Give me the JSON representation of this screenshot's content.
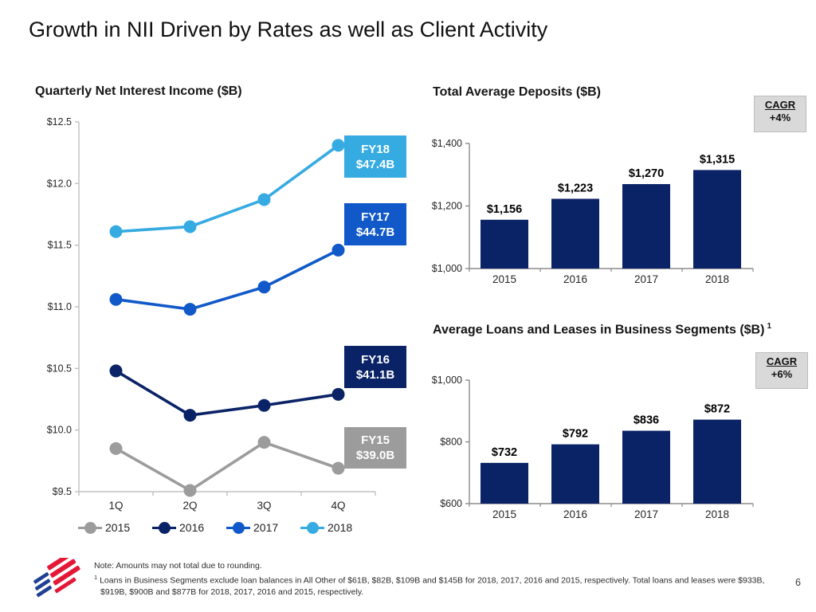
{
  "slide": {
    "title": "Growth in NII Driven by Rates as well as Client Activity",
    "page_number": "6"
  },
  "colors": {
    "navy": "#0a2266",
    "blue": "#1159c9",
    "light_blue": "#36abe2",
    "gray": "#9c9c9c",
    "cagr_bg": "#d9d9d9",
    "axis_light": "#c0c0c0",
    "axis_dark": "#8c8c8c",
    "text_dark": "#1a1a1a",
    "logo_blue": "#1f4093",
    "logo_red": "#e31837"
  },
  "chart_data": [
    {
      "type": "line",
      "title": "Quarterly Net Interest Income ($B)",
      "categories": [
        "1Q",
        "2Q",
        "3Q",
        "4Q"
      ],
      "ylim": [
        9.5,
        12.5
      ],
      "y_ticks": [
        "$12.5",
        "$12.0",
        "$11.5",
        "$11.0",
        "$10.5",
        "$10.0",
        "$9.5"
      ],
      "grid": "off",
      "legend_position": "bottom",
      "series": [
        {
          "name": "2015",
          "color_key": "gray",
          "values": [
            9.85,
            9.51,
            9.9,
            9.69
          ]
        },
        {
          "name": "2016",
          "color_key": "navy",
          "values": [
            10.48,
            10.12,
            10.2,
            10.29
          ]
        },
        {
          "name": "2017",
          "color_key": "blue",
          "values": [
            11.06,
            10.98,
            11.16,
            11.46
          ]
        },
        {
          "name": "2018",
          "color_key": "light_blue",
          "values": [
            11.61,
            11.65,
            11.87,
            12.31
          ]
        }
      ],
      "annotations": [
        {
          "label": "FY18",
          "value": "$47.4B",
          "color_key": "light_blue"
        },
        {
          "label": "FY17",
          "value": "$44.7B",
          "color_key": "blue"
        },
        {
          "label": "FY16",
          "value": "$41.1B",
          "color_key": "navy"
        },
        {
          "label": "FY15",
          "value": "$39.0B",
          "color_key": "gray"
        }
      ]
    },
    {
      "type": "bar",
      "title": "Total Average Deposits ($B)",
      "cagr": {
        "label": "CAGR",
        "value": "+4%"
      },
      "categories": [
        "2015",
        "2016",
        "2017",
        "2018"
      ],
      "values": [
        1156,
        1223,
        1270,
        1315
      ],
      "value_labels": [
        "$1,156",
        "$1,223",
        "$1,270",
        "$1,315"
      ],
      "ylim": [
        1000,
        1400
      ],
      "y_ticks": [
        {
          "label": "$1,400",
          "value": 1400
        },
        {
          "label": "$1,200",
          "value": 1200
        },
        {
          "label": "$1,000",
          "value": 1000
        }
      ],
      "grid": "off"
    },
    {
      "type": "bar",
      "title": "Average Loans and Leases in Business Segments ($B)",
      "title_superscript": "1",
      "cagr": {
        "label": "CAGR",
        "value": "+6%"
      },
      "categories": [
        "2015",
        "2016",
        "2017",
        "2018"
      ],
      "values": [
        732,
        792,
        836,
        872
      ],
      "value_labels": [
        "$732",
        "$792",
        "$836",
        "$872"
      ],
      "ylim": [
        600,
        1000
      ],
      "y_ticks": [
        {
          "label": "$1,000",
          "value": 1000
        },
        {
          "label": "$800",
          "value": 800
        },
        {
          "label": "$600",
          "value": 600
        }
      ],
      "grid": "off"
    }
  ],
  "footer": {
    "note1": "Note: Amounts may not total due to rounding.",
    "note2_superscript": "1",
    "note2": "Loans in Business Segments exclude loan balances in All Other of $61B, $82B, $109B and $145B for 2018, 2017, 2016 and 2015, respectively.  Total loans and leases were $933B,",
    "note3": "$919B, $900B and $877B for 2018, 2017, 2016 and 2015, respectively.",
    "logo_name": "bank-of-america-flagscape"
  }
}
